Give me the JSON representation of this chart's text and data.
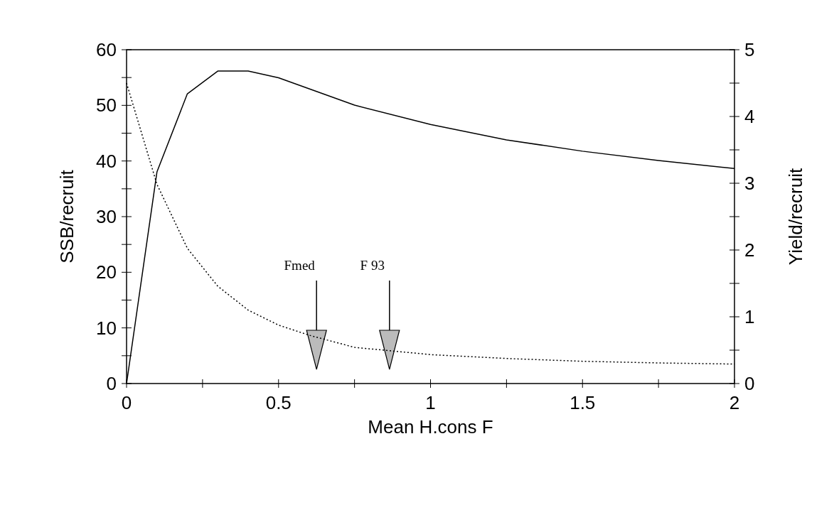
{
  "chart_data": {
    "type": "line",
    "xlabel": "Mean H.cons F",
    "ylabel": "SSB/recruit",
    "y2label": "Yield/recruit",
    "x": [
      0,
      0.1,
      0.2,
      0.3,
      0.4,
      0.5,
      0.6,
      0.75,
      1,
      1.25,
      1.5,
      1.75,
      2
    ],
    "series": [
      {
        "color": "#000000",
        "line_style": "dotted",
        "values": [
          54,
          35.8,
          24.3,
          17.5,
          13.2,
          10.5,
          8.7,
          6.5,
          5.2,
          4.5,
          4,
          3.7,
          3.5
        ]
      },
      {
        "color": "#000000",
        "line_style": "solid",
        "axis": "y2",
        "x": [
          0,
          0.1,
          0.2,
          0.3,
          0.4,
          0.5,
          0.75,
          1,
          1.25,
          1.5,
          1.75,
          2
        ],
        "values": [
          0,
          3.17,
          4.34,
          4.68,
          4.68,
          4.58,
          4.17,
          3.88,
          3.65,
          3.48,
          3.34,
          3.22
        ]
      }
    ],
    "xlim": [
      0,
      2
    ],
    "xticks": [
      0,
      {
        "value": 0.25,
        "label": null
      },
      0.5,
      {
        "value": 0.75,
        "label": null
      },
      1,
      {
        "value": 1.25,
        "label": null
      },
      1.5,
      {
        "value": 1.75,
        "label": null
      },
      2
    ],
    "ylim": [
      0,
      60
    ],
    "yticks": [
      0,
      {
        "value": 5,
        "label": null
      },
      10,
      {
        "value": 15,
        "label": null
      },
      20,
      {
        "value": 25,
        "label": null
      },
      30,
      {
        "value": 35,
        "label": null
      },
      40,
      {
        "value": 45,
        "label": null
      },
      50,
      {
        "value": 55,
        "label": null
      },
      60
    ],
    "y2lim": [
      0,
      5
    ],
    "y2ticks": [
      0,
      {
        "value": 0.5,
        "label": null
      },
      1,
      {
        "value": 1.5,
        "label": null
      },
      2,
      {
        "value": 2.5,
        "label": null
      },
      3,
      {
        "value": 3.5,
        "label": null
      },
      4,
      {
        "value": 4.5,
        "label": null
      },
      5
    ],
    "ref_lines": [
      {
        "axis": "x",
        "value": 0.625,
        "label": "Fmed"
      },
      {
        "axis": "x",
        "value": 0.865,
        "label": "F 93"
      }
    ],
    "grid": false,
    "marker": "none"
  }
}
